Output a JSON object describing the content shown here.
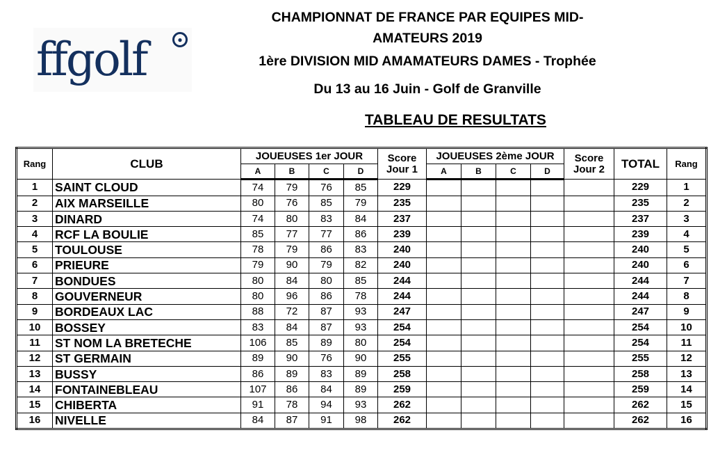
{
  "logo": {
    "text": "ffgolf"
  },
  "header": {
    "title_line1": "CHAMPIONNAT DE FRANCE PAR EQUIPES MID-",
    "title_line2": "AMATEURS 2019",
    "division": "1ère DIVISION MID AMAMATEURS  DAMES - Trophée",
    "dates_venue": "Du 13 au 16 Juin  -  Golf de Granville",
    "table_title": "TABLEAU DE RESULTATS"
  },
  "table": {
    "headers": {
      "rang": "Rang",
      "club": "CLUB",
      "day1_players": "JOUEUSES 1er JOUR",
      "score": "Score",
      "jour1": "Jour 1",
      "day2_players": "JOUEUSES 2ème JOUR",
      "jour2": "Jour 2",
      "total": "TOTAL",
      "rang_final": "Rang",
      "players": [
        "A",
        "B",
        "C",
        "D"
      ]
    },
    "rows": [
      {
        "rang": "1",
        "club": "SAINT CLOUD",
        "d1": [
          "74",
          "79",
          "76",
          "85"
        ],
        "score1": "229",
        "total": "229",
        "rang_final": "1"
      },
      {
        "rang": "2",
        "club": "AIX MARSEILLE",
        "d1": [
          "80",
          "76",
          "85",
          "79"
        ],
        "score1": "235",
        "total": "235",
        "rang_final": "2"
      },
      {
        "rang": "3",
        "club": "DINARD",
        "d1": [
          "74",
          "80",
          "83",
          "84"
        ],
        "score1": "237",
        "total": "237",
        "rang_final": "3"
      },
      {
        "rang": "4",
        "club": "RCF LA BOULIE",
        "d1": [
          "85",
          "77",
          "77",
          "86"
        ],
        "score1": "239",
        "total": "239",
        "rang_final": "4"
      },
      {
        "rang": "5",
        "club": "TOULOUSE",
        "d1": [
          "78",
          "79",
          "86",
          "83"
        ],
        "score1": "240",
        "total": "240",
        "rang_final": "5"
      },
      {
        "rang": "6",
        "club": "PRIEURE",
        "d1": [
          "79",
          "90",
          "79",
          "82"
        ],
        "score1": "240",
        "total": "240",
        "rang_final": "6"
      },
      {
        "rang": "7",
        "club": "BONDUES",
        "d1": [
          "80",
          "84",
          "80",
          "85"
        ],
        "score1": "244",
        "total": "244",
        "rang_final": "7"
      },
      {
        "rang": "8",
        "club": "GOUVERNEUR",
        "d1": [
          "80",
          "96",
          "86",
          "78"
        ],
        "score1": "244",
        "total": "244",
        "rang_final": "8"
      },
      {
        "rang": "9",
        "club": "BORDEAUX LAC",
        "d1": [
          "88",
          "72",
          "87",
          "93"
        ],
        "score1": "247",
        "total": "247",
        "rang_final": "9"
      },
      {
        "rang": "10",
        "club": "BOSSEY",
        "d1": [
          "83",
          "84",
          "87",
          "93"
        ],
        "score1": "254",
        "total": "254",
        "rang_final": "10"
      },
      {
        "rang": "11",
        "club": "ST NOM LA BRETECHE",
        "d1": [
          "106",
          "85",
          "89",
          "80"
        ],
        "score1": "254",
        "total": "254",
        "rang_final": "11"
      },
      {
        "rang": "12",
        "club": "ST GERMAIN",
        "d1": [
          "89",
          "90",
          "76",
          "90"
        ],
        "score1": "255",
        "total": "255",
        "rang_final": "12"
      },
      {
        "rang": "13",
        "club": "BUSSY",
        "d1": [
          "86",
          "89",
          "83",
          "89"
        ],
        "score1": "258",
        "total": "258",
        "rang_final": "13"
      },
      {
        "rang": "14",
        "club": "FONTAINEBLEAU",
        "d1": [
          "107",
          "86",
          "84",
          "89"
        ],
        "score1": "259",
        "total": "259",
        "rang_final": "14"
      },
      {
        "rang": "15",
        "club": "CHIBERTA",
        "d1": [
          "91",
          "78",
          "94",
          "93"
        ],
        "score1": "262",
        "total": "262",
        "rang_final": "15"
      },
      {
        "rang": "16",
        "club": "NIVELLE",
        "d1": [
          "84",
          "87",
          "91",
          "98"
        ],
        "score1": "262",
        "total": "262",
        "rang_final": "16"
      }
    ]
  }
}
